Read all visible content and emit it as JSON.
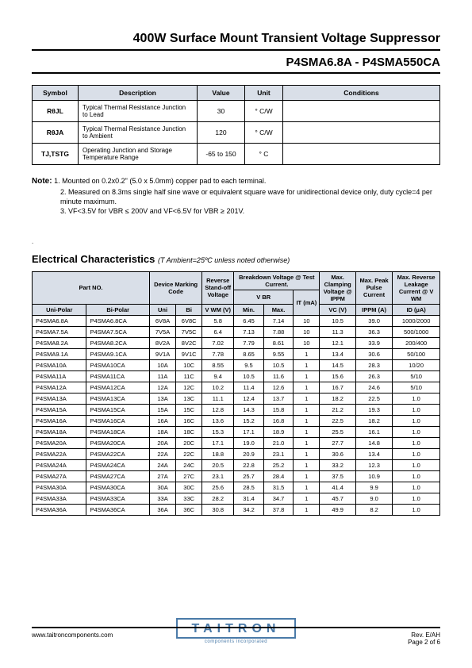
{
  "header": {
    "title1": "400W Surface Mount Transient Voltage Suppressor",
    "title2": "P4SMA6.8A - P4SMA550CA"
  },
  "thermal_table": {
    "headers": [
      "Symbol",
      "Description",
      "Value",
      "Unit",
      "Conditions"
    ],
    "col_widths": [
      "58px",
      "150px",
      "60px",
      "48px",
      "auto"
    ],
    "rows": [
      {
        "symbol": "RθJL",
        "desc": "Typical Thermal Resistance Junction to Lead",
        "value": "30",
        "unit": "° C/W",
        "cond": ""
      },
      {
        "symbol": "RθJA",
        "desc": "Typical Thermal Resistance Junction to Ambient",
        "value": "120",
        "unit": "° C/W",
        "cond": ""
      },
      {
        "symbol": "TJ,TSTG",
        "desc": "Operating Junction and Storage Temperature Range",
        "value": "-65 to 150",
        "unit": "° C",
        "cond": ""
      }
    ]
  },
  "notes": {
    "label": "Note:",
    "items": [
      "1. Mounted on 0.2x0.2\" (5.0 x 5.0mm) copper pad to each terminal.",
      "2. Measured on 8.3ms single half sine wave or equivalent square wave for unidirectional device only, duty cycle=4 per minute maximum.",
      "3. VF<3.5V for VBR ≤ 200V and VF<6.5V for VBR ≥ 201V."
    ]
  },
  "elec_section": {
    "title": "Electrical Characteristics",
    "cond": "(T Ambient=25ºC unless noted otherwise)"
  },
  "elec_table": {
    "group_headers": {
      "part": "Part NO.",
      "marking": "Device Marking Code",
      "vwm": "Reverse Stand-off Voltage",
      "bv": "Breakdown Voltage @ Test Current.",
      "vbr": "V BR",
      "vc": "Max. Clamping Voltage @ IPPM",
      "ippm": "Max. Peak Pulse Current",
      "id": "Max. Reverse Leakage Current @ V WM"
    },
    "sub_headers": {
      "uni": "Uni-Polar",
      "bi": "Bi-Polar",
      "m_uni": "Uni",
      "m_bi": "Bi",
      "vwm": "V WM (V)",
      "min": "Min.",
      "max": "Max.",
      "it": "IT (mA)",
      "vc": "VC (V)",
      "ippm": "IPPM (A)",
      "id": "ID (µA)"
    },
    "col_widths": [
      "62px",
      "72px",
      "30px",
      "30px",
      "36px",
      "34px",
      "34px",
      "30px",
      "36px",
      "42px",
      "54px"
    ],
    "rows": [
      [
        "P4SMA6.8A",
        "P4SMA6.8CA",
        "6V8A",
        "6V8C",
        "5.8",
        "6.45",
        "7.14",
        "10",
        "10.5",
        "39.0",
        "1000/2000"
      ],
      [
        "P4SMA7.5A",
        "P4SMA7.5CA",
        "7V5A",
        "7V5C",
        "6.4",
        "7.13",
        "7.88",
        "10",
        "11.3",
        "36.3",
        "500/1000"
      ],
      [
        "P4SMA8.2A",
        "P4SMA8.2CA",
        "8V2A",
        "8V2C",
        "7.02",
        "7.79",
        "8.61",
        "10",
        "12.1",
        "33.9",
        "200/400"
      ],
      [
        "P4SMA9.1A",
        "P4SMA9.1CA",
        "9V1A",
        "9V1C",
        "7.78",
        "8.65",
        "9.55",
        "1",
        "13.4",
        "30.6",
        "50/100"
      ],
      [
        "P4SMA10A",
        "P4SMA10CA",
        "10A",
        "10C",
        "8.55",
        "9.5",
        "10.5",
        "1",
        "14.5",
        "28.3",
        "10/20"
      ],
      [
        "P4SMA11A",
        "P4SMA11CA",
        "11A",
        "11C",
        "9.4",
        "10.5",
        "11.6",
        "1",
        "15.6",
        "26.3",
        "5/10"
      ],
      [
        "P4SMA12A",
        "P4SMA12CA",
        "12A",
        "12C",
        "10.2",
        "11.4",
        "12.6",
        "1",
        "16.7",
        "24.6",
        "5/10"
      ],
      [
        "P4SMA13A",
        "P4SMA13CA",
        "13A",
        "13C",
        "11.1",
        "12.4",
        "13.7",
        "1",
        "18.2",
        "22.5",
        "1.0"
      ],
      [
        "P4SMA15A",
        "P4SMA15CA",
        "15A",
        "15C",
        "12.8",
        "14.3",
        "15.8",
        "1",
        "21.2",
        "19.3",
        "1.0"
      ],
      [
        "P4SMA16A",
        "P4SMA16CA",
        "16A",
        "16C",
        "13.6",
        "15.2",
        "16.8",
        "1",
        "22.5",
        "18.2",
        "1.0"
      ],
      [
        "P4SMA18A",
        "P4SMA18CA",
        "18A",
        "18C",
        "15.3",
        "17.1",
        "18.9",
        "1",
        "25.5",
        "16.1",
        "1.0"
      ],
      [
        "P4SMA20A",
        "P4SMA20CA",
        "20A",
        "20C",
        "17.1",
        "19.0",
        "21.0",
        "1",
        "27.7",
        "14.8",
        "1.0"
      ],
      [
        "P4SMA22A",
        "P4SMA22CA",
        "22A",
        "22C",
        "18.8",
        "20.9",
        "23.1",
        "1",
        "30.6",
        "13.4",
        "1.0"
      ],
      [
        "P4SMA24A",
        "P4SMA24CA",
        "24A",
        "24C",
        "20.5",
        "22.8",
        "25.2",
        "1",
        "33.2",
        "12.3",
        "1.0"
      ],
      [
        "P4SMA27A",
        "P4SMA27CA",
        "27A",
        "27C",
        "23.1",
        "25.7",
        "28.4",
        "1",
        "37.5",
        "10.9",
        "1.0"
      ],
      [
        "P4SMA30A",
        "P4SMA30CA",
        "30A",
        "30C",
        "25.6",
        "28.5",
        "31.5",
        "1",
        "41.4",
        "9.9",
        "1.0"
      ],
      [
        "P4SMA33A",
        "P4SMA33CA",
        "33A",
        "33C",
        "28.2",
        "31.4",
        "34.7",
        "1",
        "45.7",
        "9.0",
        "1.0"
      ],
      [
        "P4SMA36A",
        "P4SMA36CA",
        "36A",
        "36C",
        "30.8",
        "34.2",
        "37.8",
        "1",
        "49.9",
        "8.2",
        "1.0"
      ]
    ]
  },
  "footer": {
    "url": "www.taitroncomponents.com",
    "rev": "Rev. E/AH",
    "page": "Page 2 of 6",
    "logo": "TAITRON",
    "logo_sub": "components incorporated"
  }
}
